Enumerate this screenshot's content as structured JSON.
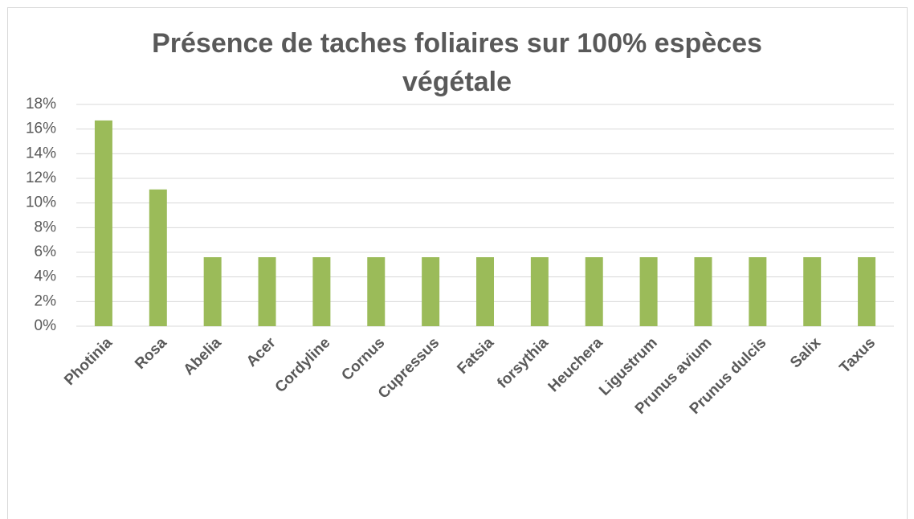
{
  "chart_data": {
    "type": "bar",
    "title": "Présence de taches foliaires sur 100% espèces végétale",
    "categories": [
      "Photinia",
      "Rosa",
      "Abelia",
      "Acer",
      "Cordyline",
      "Cornus",
      "Cupressus",
      "Fatsia",
      "forsythia",
      "Heuchera",
      "Ligustrum",
      "Prunus avium",
      "Prunus dulcis",
      "Salix",
      "Taxus"
    ],
    "values": [
      16.7,
      11.1,
      5.6,
      5.6,
      5.6,
      5.6,
      5.6,
      5.6,
      5.6,
      5.6,
      5.6,
      5.6,
      5.6,
      5.6,
      5.6
    ],
    "color": "#9bbb59",
    "ylim": [
      0,
      18
    ],
    "yticks": [
      {
        "value": 0,
        "label": "0%"
      },
      {
        "value": 2,
        "label": "2%"
      },
      {
        "value": 4,
        "label": "4%"
      },
      {
        "value": 6,
        "label": "6%"
      },
      {
        "value": 8,
        "label": "8%"
      },
      {
        "value": 10,
        "label": "10%"
      },
      {
        "value": 12,
        "label": "12%"
      },
      {
        "value": 14,
        "label": "14%"
      },
      {
        "value": 16,
        "label": "16%"
      },
      {
        "value": 18,
        "label": "18%"
      }
    ],
    "grid": true
  }
}
